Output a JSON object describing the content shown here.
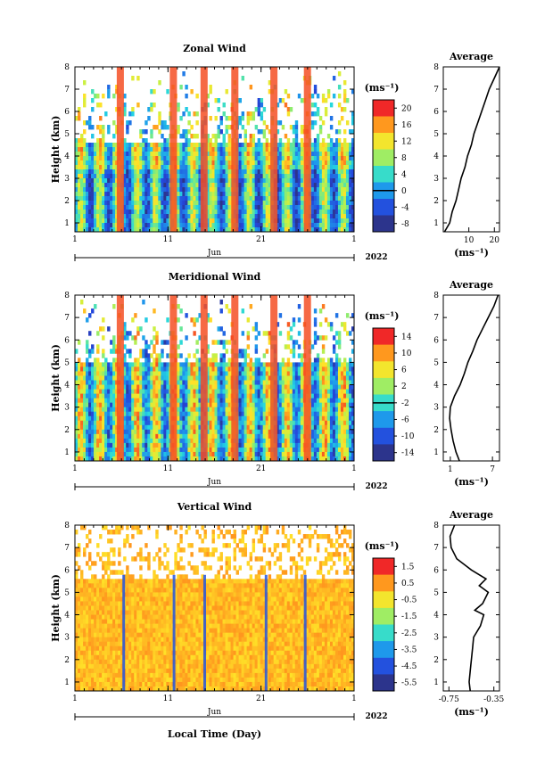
{
  "chart_data": [
    {
      "type": "heatmap",
      "title": "Zonal Wind",
      "ylabel": "Height (km)",
      "xlabel": "",
      "x_ticks": [
        "1",
        "11",
        "21",
        "1"
      ],
      "x_month": "Jun",
      "year": "2022",
      "y_ticks": [
        "1",
        "2",
        "3",
        "4",
        "5",
        "6",
        "7",
        "8"
      ],
      "ylim": [
        0.6,
        8
      ],
      "colorbar": {
        "unit": "(ms⁻¹)",
        "ticks": [
          "20",
          "16",
          "12",
          "8",
          "4",
          "0",
          "-4",
          "-8"
        ],
        "range": [
          -10,
          22
        ],
        "zero_line": "0"
      },
      "average": {
        "title": "Average",
        "xlabel": "(ms⁻¹)",
        "x_ticks": [
          "10",
          "20"
        ],
        "xlim": [
          0,
          22
        ],
        "y_ticks": [
          "1",
          "2",
          "3",
          "4",
          "5",
          "6",
          "7",
          "8"
        ],
        "profile": [
          {
            "h": 0.6,
            "v": 0.5
          },
          {
            "h": 1.0,
            "v": 2.5
          },
          {
            "h": 1.5,
            "v": 3.5
          },
          {
            "h": 2.0,
            "v": 5.0
          },
          {
            "h": 2.5,
            "v": 6.0
          },
          {
            "h": 3.0,
            "v": 7.0
          },
          {
            "h": 3.5,
            "v": 8.5
          },
          {
            "h": 4.0,
            "v": 9.5
          },
          {
            "h": 4.5,
            "v": 11.0
          },
          {
            "h": 5.0,
            "v": 12.0
          },
          {
            "h": 5.5,
            "v": 13.5
          },
          {
            "h": 6.0,
            "v": 15.0
          },
          {
            "h": 6.5,
            "v": 16.5
          },
          {
            "h": 7.0,
            "v": 18.0
          },
          {
            "h": 7.5,
            "v": 20.0
          },
          {
            "h": 8.0,
            "v": 22.0
          }
        ]
      }
    },
    {
      "type": "heatmap",
      "title": "Meridional Wind",
      "ylabel": "Height (km)",
      "xlabel": "",
      "x_ticks": [
        "1",
        "11",
        "21",
        "1"
      ],
      "x_month": "Jun",
      "year": "2022",
      "y_ticks": [
        "1",
        "2",
        "3",
        "4",
        "5",
        "6",
        "7",
        "8"
      ],
      "ylim": [
        0.6,
        8
      ],
      "colorbar": {
        "unit": "(ms⁻¹)",
        "ticks": [
          "14",
          "10",
          "6",
          "2",
          "-2",
          "-6",
          "-10",
          "-14"
        ],
        "range": [
          -16,
          16
        ],
        "zero_line": "0"
      },
      "average": {
        "title": "Average",
        "xlabel": "(ms⁻¹)",
        "x_ticks": [
          "1",
          "7"
        ],
        "xlim": [
          0,
          8
        ],
        "y_ticks": [
          "1",
          "2",
          "3",
          "4",
          "5",
          "6",
          "7",
          "8"
        ],
        "profile": [
          {
            "h": 0.6,
            "v": 2.3
          },
          {
            "h": 1.0,
            "v": 1.8
          },
          {
            "h": 1.5,
            "v": 1.4
          },
          {
            "h": 2.0,
            "v": 1.1
          },
          {
            "h": 2.5,
            "v": 0.9
          },
          {
            "h": 3.0,
            "v": 1.0
          },
          {
            "h": 3.5,
            "v": 1.6
          },
          {
            "h": 4.0,
            "v": 2.4
          },
          {
            "h": 4.5,
            "v": 3.0
          },
          {
            "h": 5.0,
            "v": 3.5
          },
          {
            "h": 5.5,
            "v": 4.2
          },
          {
            "h": 6.0,
            "v": 4.8
          },
          {
            "h": 6.5,
            "v": 5.6
          },
          {
            "h": 7.0,
            "v": 6.4
          },
          {
            "h": 7.5,
            "v": 7.2
          },
          {
            "h": 8.0,
            "v": 7.8
          }
        ]
      }
    },
    {
      "type": "heatmap",
      "title": "Vertical Wind",
      "ylabel": "Height (km)",
      "xlabel": "Local Time (Day)",
      "x_ticks": [
        "1",
        "11",
        "21",
        "1"
      ],
      "x_month": "Jun",
      "year": "2022",
      "y_ticks": [
        "1",
        "2",
        "3",
        "4",
        "5",
        "6",
        "7",
        "8"
      ],
      "ylim": [
        0.6,
        8
      ],
      "colorbar": {
        "unit": "(ms⁻¹)",
        "ticks": [
          "1.5",
          "0.5",
          "-0.5",
          "-1.5",
          "-2.5",
          "-3.5",
          "-4.5",
          "-5.5"
        ],
        "range": [
          -6,
          2
        ]
      },
      "average": {
        "title": "Average",
        "xlabel": "(ms⁻¹)",
        "x_ticks": [
          "-0.75",
          "-0.35"
        ],
        "xlim": [
          -0.8,
          -0.3
        ],
        "y_ticks": [
          "1",
          "2",
          "3",
          "4",
          "5",
          "6",
          "7",
          "8"
        ],
        "profile": [
          {
            "h": 0.6,
            "v": -0.56
          },
          {
            "h": 1.0,
            "v": -0.57
          },
          {
            "h": 1.5,
            "v": -0.56
          },
          {
            "h": 2.0,
            "v": -0.55
          },
          {
            "h": 2.5,
            "v": -0.54
          },
          {
            "h": 3.0,
            "v": -0.53
          },
          {
            "h": 3.5,
            "v": -0.47
          },
          {
            "h": 4.0,
            "v": -0.44
          },
          {
            "h": 4.2,
            "v": -0.52
          },
          {
            "h": 4.5,
            "v": -0.45
          },
          {
            "h": 5.0,
            "v": -0.4
          },
          {
            "h": 5.3,
            "v": -0.48
          },
          {
            "h": 5.6,
            "v": -0.42
          },
          {
            "h": 6.0,
            "v": -0.55
          },
          {
            "h": 6.5,
            "v": -0.68
          },
          {
            "h": 7.0,
            "v": -0.73
          },
          {
            "h": 7.5,
            "v": -0.74
          },
          {
            "h": 8.0,
            "v": -0.7
          }
        ]
      }
    }
  ]
}
